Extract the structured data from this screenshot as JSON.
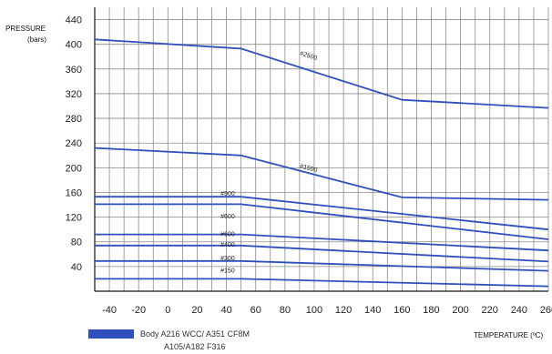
{
  "chart_data": {
    "type": "line",
    "ylabel": "PRESSURE",
    "yunit": "(bars)",
    "xlabel": "TEMPERATURE (ºC)",
    "xlim": [
      -50,
      260
    ],
    "ylim": [
      0,
      460
    ],
    "x_ticks": [
      -40,
      -30,
      -20,
      -10,
      0,
      10,
      20,
      30,
      40,
      50,
      60,
      70,
      80,
      90,
      100,
      110,
      120,
      130,
      140,
      150,
      160,
      170,
      180,
      190,
      200,
      210,
      220,
      230,
      240,
      250,
      260
    ],
    "x_tick_labels": [
      "-40",
      "-20",
      "0",
      "20",
      "40",
      "60",
      "80",
      "100",
      "120",
      "140",
      "160",
      "180",
      "200",
      "220",
      "240",
      "260"
    ],
    "y_ticks": [
      40,
      80,
      120,
      160,
      200,
      240,
      280,
      320,
      360,
      400,
      440
    ],
    "grid": true,
    "line_color": "#2f4fbf",
    "series": [
      {
        "name": "#2500",
        "label_at": [
          90,
          383
        ],
        "x": [
          -50,
          50,
          160,
          260
        ],
        "y": [
          408,
          393,
          310,
          297
        ]
      },
      {
        "name": "#1500",
        "label_at": [
          90,
          200
        ],
        "x": [
          -50,
          50,
          160,
          260
        ],
        "y": [
          232,
          220,
          152,
          148
        ]
      },
      {
        "name": "#900",
        "label_at": [
          36,
          155
        ],
        "x": [
          -50,
          50,
          260
        ],
        "y": [
          153,
          153,
          100
        ]
      },
      {
        "name": "#600",
        "label_at": [
          36,
          118
        ],
        "x": [
          -50,
          50,
          260
        ],
        "y": [
          141,
          141,
          84
        ]
      },
      {
        "name": "#600",
        "label_at": [
          36,
          89
        ],
        "x": [
          -50,
          50,
          260
        ],
        "y": [
          92,
          92,
          66
        ]
      },
      {
        "name": "#400",
        "label_at": [
          36,
          72
        ],
        "x": [
          -50,
          50,
          260
        ],
        "y": [
          74,
          74,
          48
        ]
      },
      {
        "name": "#300",
        "label_at": [
          36,
          50
        ],
        "x": [
          -50,
          50,
          260
        ],
        "y": [
          49,
          49,
          33
        ]
      },
      {
        "name": "#150",
        "label_at": [
          36,
          30
        ],
        "x": [
          -50,
          50,
          260
        ],
        "y": [
          20,
          20,
          8
        ]
      }
    ]
  },
  "legend": {
    "color": "#2f4fbf",
    "line1": "Body A216 WCC/ A351 CF8M",
    "line2": "A105/A182 F316"
  }
}
